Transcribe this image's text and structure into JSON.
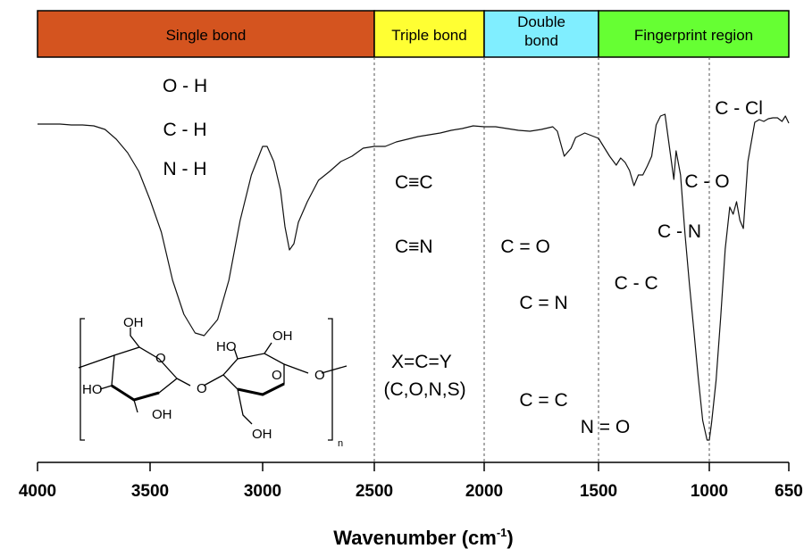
{
  "chart_data": {
    "type": "line",
    "title": "",
    "xlabel_main": "Wavenumber (cm",
    "xlabel_sup": "-1",
    "xlabel_end": ")",
    "ylabel": "",
    "xlim": [
      4000,
      650
    ],
    "x_ticks": [
      4000,
      3500,
      3000,
      2500,
      2000,
      1500,
      1000,
      650
    ],
    "tick_labels": [
      "4000",
      "3500",
      "3000",
      "2500",
      "2000",
      "1500",
      "1000",
      "650"
    ],
    "dividers": [
      2500,
      2000,
      1500,
      1000
    ],
    "regions": [
      {
        "label": "Single bond",
        "from": 4000,
        "to": 2500,
        "color": "#d4541f"
      },
      {
        "label": "Triple bond",
        "from": 2500,
        "to": 2000,
        "color": "#ffff33"
      },
      {
        "label_lines": [
          "Double",
          "bond"
        ],
        "from": 2000,
        "to": 1500,
        "color": "#80eeff"
      },
      {
        "label": "Fingerprint region",
        "from": 1500,
        "to": 650,
        "color": "#66ff33"
      }
    ],
    "series": [
      {
        "x": [
          4000,
          3900,
          3850,
          3800,
          3750,
          3700,
          3650,
          3600,
          3550,
          3500,
          3450,
          3400,
          3350,
          3300,
          3260,
          3200,
          3150,
          3100,
          3050,
          3000,
          2980,
          2950,
          2920,
          2900,
          2880,
          2860,
          2840,
          2800,
          2750,
          2700,
          2650,
          2600,
          2550,
          2500,
          2450,
          2400,
          2350,
          2300,
          2250,
          2200,
          2150,
          2100,
          2050,
          2000,
          1950,
          1900,
          1850,
          1800,
          1750,
          1700,
          1680,
          1650,
          1620,
          1600,
          1560,
          1500,
          1450,
          1420,
          1400,
          1380,
          1360,
          1340,
          1320,
          1300,
          1280,
          1260,
          1240,
          1220,
          1200,
          1180,
          1160,
          1150,
          1130,
          1110,
          1090,
          1070,
          1050,
          1030,
          1010,
          1000,
          990,
          970,
          950,
          930,
          910,
          895,
          880,
          865,
          850,
          830,
          800,
          780,
          760,
          740,
          720,
          700,
          680,
          665,
          650
        ],
        "y": [
          11,
          11,
          12,
          12,
          13,
          17,
          28,
          43,
          64,
          96,
          132,
          186,
          224,
          245,
          248,
          230,
          186,
          119,
          68,
          36,
          36,
          53,
          85,
          126,
          152,
          145,
          121,
          98,
          74,
          64,
          53,
          47,
          38,
          36,
          36,
          31,
          28,
          25,
          23,
          21,
          18,
          16,
          13,
          14,
          14,
          16,
          18,
          19,
          17,
          14,
          19,
          47,
          38,
          26,
          21,
          27,
          47,
          57,
          49,
          54,
          63,
          80,
          68,
          68,
          58,
          47,
          12,
          2,
          0,
          37,
          73,
          41,
          68,
          133,
          190,
          241,
          295,
          343,
          365,
          365,
          346,
          298,
          228,
          151,
          104,
          112,
          98,
          119,
          128,
          53,
          9,
          6,
          8,
          5,
          4,
          4,
          8,
          2,
          10
        ]
      }
    ],
    "bond_labels": [
      {
        "text": "O - H",
        "x": 3345,
        "line": 0
      },
      {
        "text": "C - H",
        "x": 3345,
        "line": 1
      },
      {
        "text": "N - H",
        "x": 3345,
        "line": 2
      },
      {
        "text": "C≡C",
        "x": 2320,
        "line": 3
      },
      {
        "text": "C≡N",
        "x": 2320,
        "line": 4
      },
      {
        "text": "C = O",
        "x": 1820,
        "line": 5
      },
      {
        "text": "C = N",
        "x": 1740,
        "line": 6
      },
      {
        "text": "X=C=Y",
        "x": 2285,
        "line": 7
      },
      {
        "text": "(C,O,N,S)",
        "x": 2270,
        "line": 8
      },
      {
        "text": "C = C",
        "x": 1740,
        "line": 9
      },
      {
        "text": "N = O",
        "x": 1470,
        "line": 10
      },
      {
        "text": "C - C",
        "x": 1330,
        "line": 11
      },
      {
        "text": "C - N",
        "x": 1135,
        "line": 12
      },
      {
        "text": "C - O",
        "x": 1010,
        "line": 13
      },
      {
        "text": "C - Cl",
        "x": 870,
        "line": 14
      }
    ],
    "structure_labels": [
      "OH",
      "OH",
      "HO",
      "O",
      "O",
      "O",
      "HO",
      "OH",
      "O",
      "OH",
      "n"
    ]
  }
}
